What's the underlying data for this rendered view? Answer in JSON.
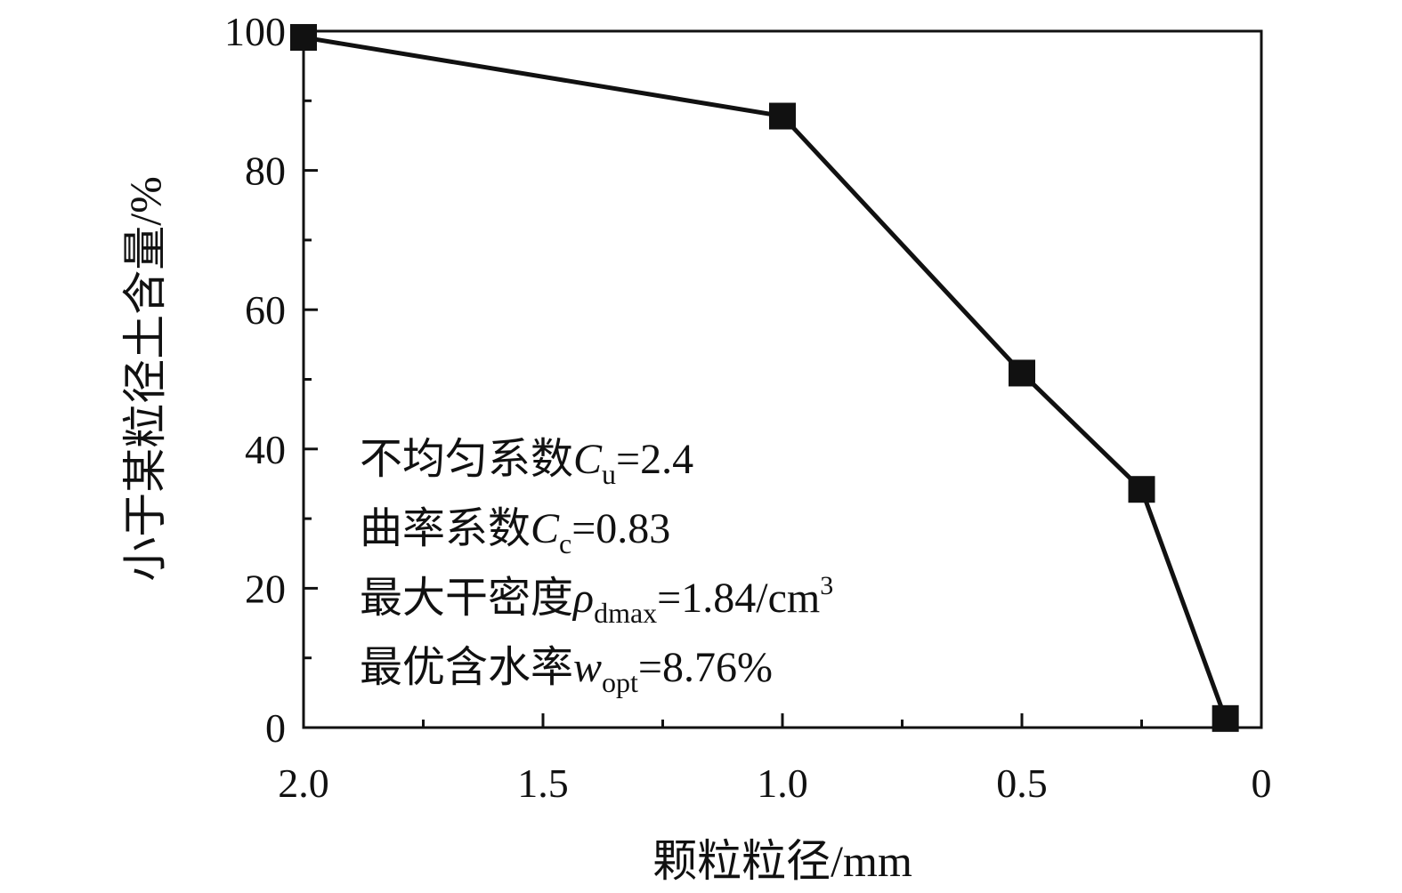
{
  "chart_data": {
    "type": "line",
    "title": "",
    "xlabel": "颗粒粒径/mm",
    "ylabel": "小于某粒径土含量/%",
    "x_reversed": true,
    "xlim": [
      2.0,
      0
    ],
    "ylim": [
      0,
      100
    ],
    "x_ticks": [
      "2.0",
      "1.5",
      "1.0",
      "0.5",
      "0"
    ],
    "y_ticks": [
      "0",
      "20",
      "40",
      "60",
      "80",
      "100"
    ],
    "grid": false,
    "marker": "square",
    "line_color": "#111111",
    "series": [
      {
        "x": [
          2.0,
          1.0,
          0.5,
          0.25,
          0.075
        ],
        "y": [
          99.1,
          87.8,
          50.9,
          34.2,
          1.3
        ]
      }
    ],
    "annotations": [
      {
        "prefix": "不均匀系数",
        "sym": "C",
        "sub": "u",
        "suffix": "=2.4"
      },
      {
        "prefix": "曲率系数",
        "sym": "C",
        "sub": "c",
        "suffix": "=0.83"
      },
      {
        "prefix": "最大干密度",
        "sym": "ρ",
        "sub": "dmax",
        "suffix": "=1.84/cm",
        "sup": "3"
      },
      {
        "prefix": "最优含水率",
        "sym": "w",
        "sub": "opt",
        "suffix": "=8.76%"
      }
    ]
  }
}
